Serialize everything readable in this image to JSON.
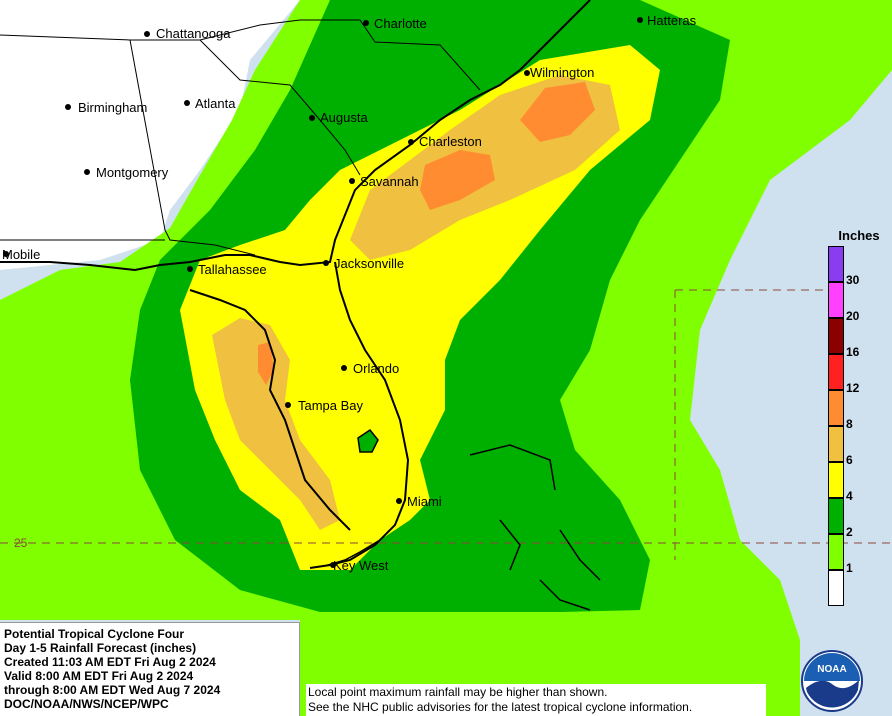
{
  "map": {
    "cities": [
      {
        "name": "Chattanooga"
      },
      {
        "name": "Charlotte"
      },
      {
        "name": "Hatteras"
      },
      {
        "name": "Wilmington"
      },
      {
        "name": "Birmingham"
      },
      {
        "name": "Atlanta"
      },
      {
        "name": "Augusta"
      },
      {
        "name": "Charleston"
      },
      {
        "name": "Montgomery"
      },
      {
        "name": "Savannah"
      },
      {
        "name": "Mobile"
      },
      {
        "name": "Tallahassee"
      },
      {
        "name": "Jacksonville"
      },
      {
        "name": "Orlando"
      },
      {
        "name": "Tampa Bay"
      },
      {
        "name": "Miami"
      },
      {
        "name": "Key West"
      }
    ],
    "latitude_label": "25",
    "colors": {
      "ocean": "#cfe0ee",
      "land_outside": "#ffffff",
      "level_1": "#7fff00",
      "level_2": "#00b000",
      "level_4": "#ffff00",
      "level_6": "#f0c040",
      "level_8": "#ff8c30"
    }
  },
  "legend": {
    "title": "Inches",
    "items": [
      {
        "label": "30",
        "color": "#8a3cf0"
      },
      {
        "label": "20",
        "color": "#ff40ff"
      },
      {
        "label": "16",
        "color": "#8b0000"
      },
      {
        "label": "12",
        "color": "#ff2020"
      },
      {
        "label": "8",
        "color": "#ff8c30"
      },
      {
        "label": "6",
        "color": "#f0c040"
      },
      {
        "label": "4",
        "color": "#ffff00"
      },
      {
        "label": "2",
        "color": "#00b000"
      },
      {
        "label": "1",
        "color": "#7fff00"
      },
      {
        "label": "",
        "color": "#ffffff"
      }
    ]
  },
  "info": {
    "line1": "Potential Tropical Cyclone Four",
    "line2": "Day 1-5 Rainfall Forecast (inches)",
    "line3": "Created 11:03 AM EDT Fri Aug 2 2024",
    "line4": "Valid 8:00 AM EDT Fri Aug 2 2024",
    "line5": "through 8:00 AM EDT Wed Aug 7 2024",
    "line6": "DOC/NOAA/NWS/NCEP/WPC"
  },
  "disclaimer": {
    "line1": "Local point maximum rainfall may be higher than shown.",
    "line2": "See the NHC public advisories for the latest tropical cyclone information."
  },
  "logo": {
    "text": "NOAA"
  }
}
